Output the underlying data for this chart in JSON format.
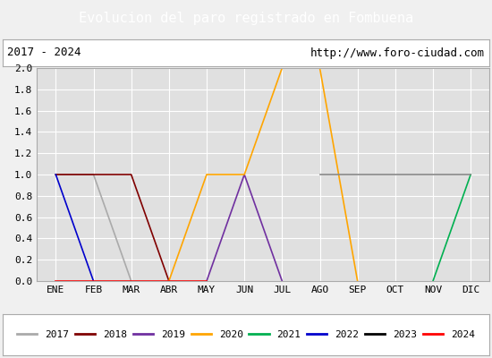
{
  "title": "Evolucion del paro registrado en Fombuena",
  "title_bg": "#4472c4",
  "subtitle_left": "2017 - 2024",
  "subtitle_right": "http://www.foro-ciudad.com",
  "months": [
    "ENE",
    "FEB",
    "MAR",
    "ABR",
    "MAY",
    "JUN",
    "JUL",
    "AGO",
    "SEP",
    "OCT",
    "NOV",
    "DIC"
  ],
  "month_indices": [
    1,
    2,
    3,
    4,
    5,
    6,
    7,
    8,
    9,
    10,
    11,
    12
  ],
  "series": [
    {
      "year": "2017",
      "color": "#aaaaaa",
      "data": [
        [
          1,
          1
        ],
        [
          2,
          1
        ],
        [
          3,
          0
        ]
      ]
    },
    {
      "year": "2018",
      "color": "#800000",
      "data": [
        [
          1,
          1
        ],
        [
          2,
          1
        ],
        [
          3,
          1
        ],
        [
          4,
          0
        ]
      ]
    },
    {
      "year": "2019",
      "color": "#7030a0",
      "data": [
        [
          5,
          0
        ],
        [
          6,
          1
        ],
        [
          7,
          0
        ]
      ]
    },
    {
      "year": "2020",
      "color": "#ffa500",
      "data": [
        [
          4,
          0
        ],
        [
          5,
          1
        ],
        [
          6,
          1
        ],
        [
          7,
          2
        ],
        [
          8,
          2
        ],
        [
          9,
          0
        ]
      ]
    },
    {
      "year": "2021",
      "color": "#00b050",
      "data": [
        [
          11,
          0
        ],
        [
          12,
          1
        ]
      ]
    },
    {
      "year": "2022",
      "color": "#0000cc",
      "data": [
        [
          1,
          1
        ],
        [
          2,
          0
        ]
      ]
    },
    {
      "year": "2023",
      "color": "#888888",
      "data": [
        [
          8,
          1
        ],
        [
          9,
          1
        ],
        [
          10,
          1
        ],
        [
          11,
          1
        ],
        [
          12,
          1
        ]
      ]
    },
    {
      "year": "2024",
      "color": "#ff0000",
      "data": [
        [
          1,
          0
        ],
        [
          2,
          0
        ],
        [
          3,
          0
        ],
        [
          4,
          0
        ],
        [
          5,
          0
        ]
      ]
    }
  ],
  "ylim": [
    0.0,
    2.0
  ],
  "yticks": [
    0.0,
    0.2,
    0.4,
    0.6,
    0.8,
    1.0,
    1.2,
    1.4,
    1.6,
    1.8,
    2.0
  ],
  "bg_plot": "#e0e0e0",
  "bg_fig": "#f0f0f0",
  "grid_color": "#ffffff",
  "border_color": "#aaaaaa",
  "legend_colors": [
    "#aaaaaa",
    "#800000",
    "#7030a0",
    "#ffa500",
    "#00b050",
    "#0000cc",
    "#000000",
    "#ff0000"
  ],
  "legend_labels": [
    "2017",
    "2018",
    "2019",
    "2020",
    "2021",
    "2022",
    "2023",
    "2024"
  ]
}
